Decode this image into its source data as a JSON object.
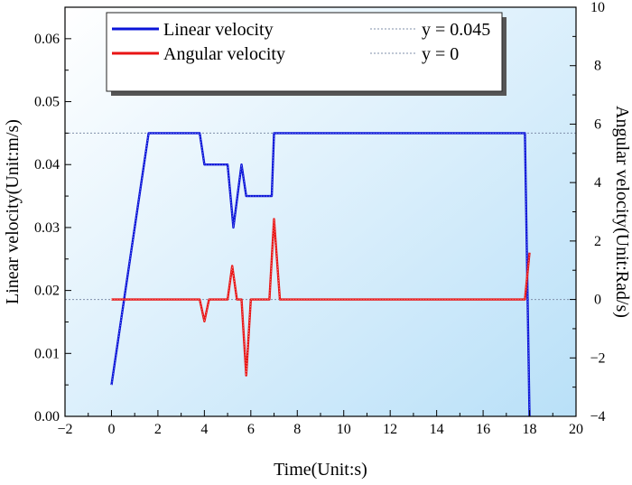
{
  "chart_data": {
    "type": "line",
    "title": "",
    "xlabel": "Time(Unit:s)",
    "ylabel_left": "Linear velocity(Unit:m/s)",
    "ylabel_right": "Angular velocity(Unit:Rad/s)",
    "xlim": [
      -2,
      20
    ],
    "ylim_left": [
      0.0,
      0.065
    ],
    "ylim_right": [
      -4,
      10
    ],
    "x_ticks": [
      -2,
      0,
      2,
      4,
      6,
      8,
      10,
      12,
      14,
      16,
      18,
      20
    ],
    "x_tick_labels": [
      "−2",
      "0",
      "2",
      "4",
      "6",
      "8",
      "10",
      "12",
      "14",
      "16",
      "18",
      "20"
    ],
    "y_left_ticks": [
      0.0,
      0.01,
      0.02,
      0.03,
      0.04,
      0.05,
      0.06
    ],
    "y_left_tick_labels": [
      "0.00",
      "0.01",
      "0.02",
      "0.03",
      "0.04",
      "0.05",
      "0.06"
    ],
    "y_right_ticks": [
      -4,
      -2,
      0,
      2,
      4,
      6,
      8,
      10
    ],
    "y_right_tick_labels": [
      "−4",
      "−2",
      "0",
      "2",
      "4",
      "6",
      "8",
      "10"
    ],
    "grid": false,
    "legend_position": "top",
    "background": {
      "gradient_from": "#ffffff",
      "gradient_to": "#b9e0f8"
    },
    "series": [
      {
        "name": "Linear velocity",
        "axis": "left",
        "color": "#0a14d8",
        "x": [
          0,
          1.6,
          3.8,
          4.0,
          5.0,
          5.25,
          5.6,
          5.8,
          6.0,
          6.9,
          7.0,
          17.8,
          18.0
        ],
        "y": [
          0.005,
          0.045,
          0.045,
          0.04,
          0.04,
          0.03,
          0.04,
          0.035,
          0.035,
          0.035,
          0.045,
          0.045,
          0.0
        ]
      },
      {
        "name": "Angular velocity",
        "axis": "right",
        "color": "#e81414",
        "x": [
          0,
          3.8,
          4.0,
          4.2,
          5.0,
          5.2,
          5.4,
          5.6,
          5.8,
          6.0,
          6.8,
          7.0,
          7.25,
          17.8,
          18.0
        ],
        "y": [
          0,
          0,
          -0.75,
          0,
          0,
          1.15,
          0,
          0,
          -2.6,
          0,
          0,
          2.75,
          0,
          0,
          1.6
        ]
      }
    ],
    "reference_lines": [
      {
        "name": "y = 0.045",
        "axis": "left",
        "value": 0.045,
        "style": "dotted",
        "color": "#7f8faa"
      },
      {
        "name": "y = 0",
        "axis": "right",
        "value": 0,
        "style": "dotted",
        "color": "#7f8faa"
      }
    ]
  }
}
